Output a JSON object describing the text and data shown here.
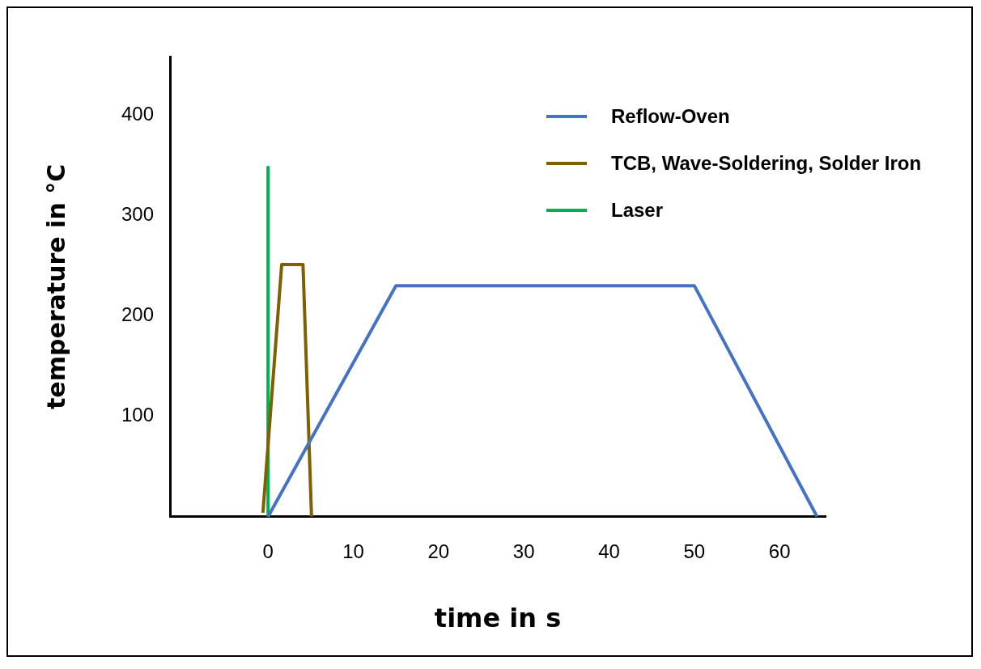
{
  "chart_data": {
    "type": "line",
    "xlabel": "time in s",
    "ylabel": "temperature in °C",
    "xlim": [
      -11.5,
      65.4
    ],
    "ylim": [
      0,
      458
    ],
    "xticks": [
      0,
      10,
      20,
      30,
      40,
      50,
      60
    ],
    "yticks": [
      100,
      200,
      300,
      400
    ],
    "grid": false,
    "legend": "top right",
    "marker": "none",
    "series": [
      {
        "name": "Reflow-Oven",
        "color": "#4472c4",
        "x": [
          0,
          15,
          50,
          64.4
        ],
        "values": [
          0,
          230,
          230,
          0
        ]
      },
      {
        "name": "TCB, Wave-Soldering, Solder Iron",
        "color": "#7f6000",
        "x": [
          -0.6,
          1.6,
          4.1,
          5.1
        ],
        "values": [
          4,
          251,
          251,
          0
        ]
      },
      {
        "name": "Laser",
        "color": "#00b050",
        "x": [
          0,
          0
        ],
        "values": [
          0,
          349
        ]
      }
    ]
  }
}
